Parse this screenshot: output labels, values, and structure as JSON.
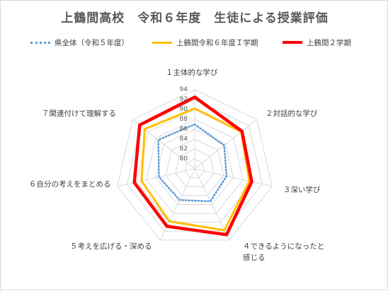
{
  "chart_data": {
    "type": "radar",
    "title": "上鶴間高校　令和６年度　生徒による授業評価",
    "categories": [
      "１主体的な学び",
      "２対話的な学び",
      "３深い学び",
      "４できるようになったと感じる",
      "５考えを広げる・深める",
      "６自分の考えをまとめる",
      "７関連付けて理解する"
    ],
    "ticks": [
      80,
      82,
      84,
      86,
      88,
      90,
      92,
      94
    ],
    "rlim": [
      78,
      94
    ],
    "grid": true,
    "legend_position": "top",
    "series": [
      {
        "name": "県全体（令和５年度）",
        "color": "#5b9bd5",
        "style": "dotted",
        "width": 2.5,
        "values": [
          87.0,
          85.6,
          84.6,
          85.3,
          85.0,
          85.4,
          87.4
        ]
      },
      {
        "name": "上鶴間令和６年度Ｉ学期",
        "color": "#ffc000",
        "style": "solid",
        "width": 3,
        "values": [
          90.2,
          90.0,
          89.3,
          91.8,
          89.8,
          89.0,
          90.9
        ]
      },
      {
        "name": "上鶴間２学期",
        "color": "#ff0000",
        "style": "solid",
        "width": 4.5,
        "values": [
          92.5,
          90.2,
          89.8,
          92.8,
          90.9,
          90.5,
          92.2
        ]
      }
    ]
  }
}
